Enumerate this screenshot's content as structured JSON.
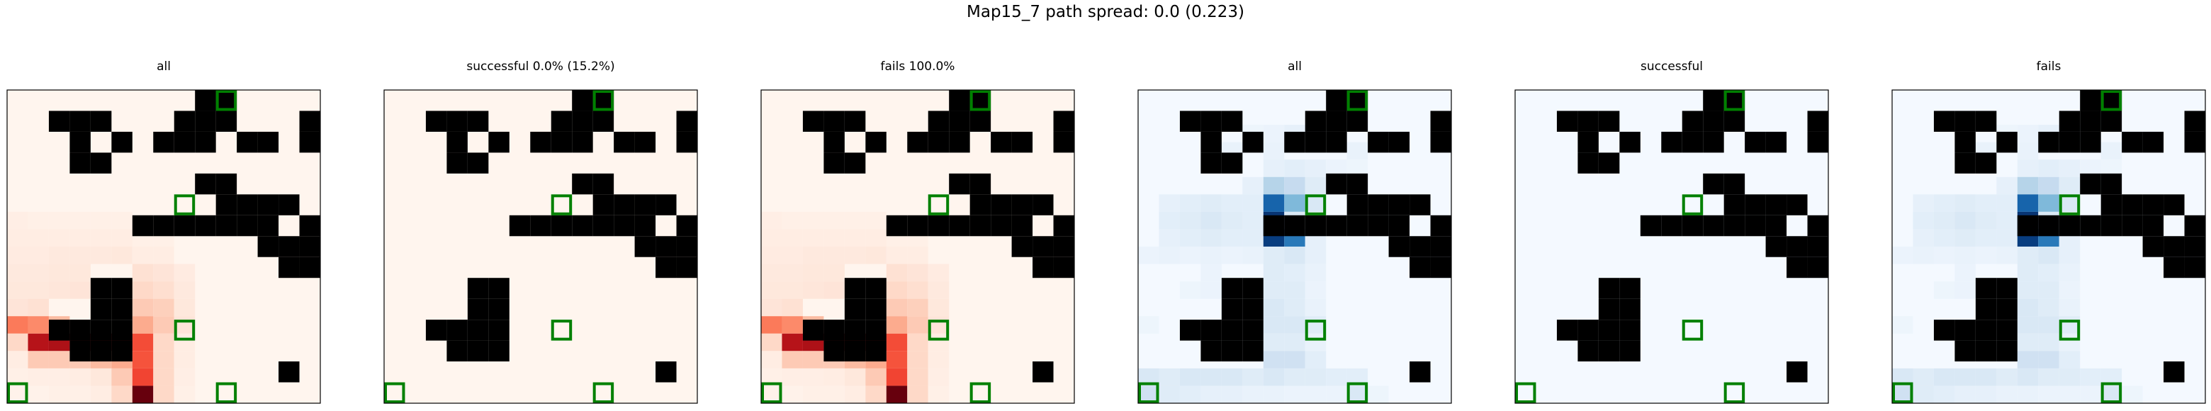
{
  "figure": {
    "suptitle": "Map15_7 path spread: 0.0 (0.223)"
  },
  "grid": {
    "rows": 15,
    "cols": 15,
    "walls": [
      [
        1,
        9
      ],
      [
        1,
        10
      ],
      [
        2,
        2
      ],
      [
        2,
        3
      ],
      [
        2,
        4
      ],
      [
        2,
        8
      ],
      [
        2,
        9
      ],
      [
        2,
        10
      ],
      [
        2,
        14
      ],
      [
        3,
        3
      ],
      [
        3,
        5
      ],
      [
        3,
        7
      ],
      [
        3,
        8
      ],
      [
        3,
        9
      ],
      [
        3,
        11
      ],
      [
        3,
        12
      ],
      [
        3,
        14
      ],
      [
        4,
        3
      ],
      [
        4,
        4
      ],
      [
        5,
        9
      ],
      [
        5,
        10
      ],
      [
        6,
        10
      ],
      [
        6,
        11
      ],
      [
        6,
        12
      ],
      [
        6,
        13
      ],
      [
        7,
        6
      ],
      [
        7,
        7
      ],
      [
        7,
        8
      ],
      [
        7,
        9
      ],
      [
        7,
        10
      ],
      [
        7,
        11
      ],
      [
        7,
        12
      ],
      [
        7,
        14
      ],
      [
        8,
        12
      ],
      [
        8,
        13
      ],
      [
        8,
        14
      ],
      [
        9,
        13
      ],
      [
        9,
        14
      ],
      [
        10,
        4
      ],
      [
        10,
        5
      ],
      [
        11,
        4
      ],
      [
        11,
        5
      ],
      [
        12,
        2
      ],
      [
        12,
        3
      ],
      [
        12,
        4
      ],
      [
        12,
        5
      ],
      [
        13,
        3
      ],
      [
        13,
        4
      ],
      [
        13,
        5
      ],
      [
        14,
        13
      ]
    ],
    "markers": [
      [
        1,
        10
      ],
      [
        6,
        8
      ],
      [
        12,
        8
      ],
      [
        15,
        0
      ],
      [
        15,
        10
      ]
    ],
    "marker_color": "#008000"
  },
  "chart_data": [
    {
      "type": "heatmap",
      "title": "all",
      "colormap": "Reds",
      "vmax": 1.0,
      "cells": [
        [
          7,
          0,
          0.04
        ],
        [
          7,
          1,
          0.03
        ],
        [
          7,
          2,
          0.03
        ],
        [
          7,
          3,
          0.03
        ],
        [
          7,
          4,
          0.03
        ],
        [
          7,
          5,
          0.03
        ],
        [
          8,
          0,
          0.05
        ],
        [
          8,
          1,
          0.05
        ],
        [
          8,
          2,
          0.05
        ],
        [
          8,
          3,
          0.05
        ],
        [
          8,
          4,
          0.05
        ],
        [
          8,
          5,
          0.05
        ],
        [
          8,
          6,
          0.03
        ],
        [
          8,
          7,
          0.03
        ],
        [
          9,
          0,
          0.06
        ],
        [
          9,
          1,
          0.06
        ],
        [
          9,
          2,
          0.07
        ],
        [
          9,
          3,
          0.07
        ],
        [
          9,
          4,
          0.07
        ],
        [
          9,
          5,
          0.08
        ],
        [
          9,
          6,
          0.05
        ],
        [
          9,
          7,
          0.05
        ],
        [
          10,
          0,
          0.07
        ],
        [
          10,
          1,
          0.07
        ],
        [
          10,
          2,
          0.08
        ],
        [
          10,
          3,
          0.08
        ],
        [
          10,
          6,
          0.12
        ],
        [
          10,
          7,
          0.1
        ],
        [
          10,
          8,
          0.06
        ],
        [
          11,
          0,
          0.08
        ],
        [
          11,
          1,
          0.08
        ],
        [
          11,
          2,
          0.09
        ],
        [
          11,
          3,
          0.1
        ],
        [
          11,
          6,
          0.15
        ],
        [
          11,
          7,
          0.13
        ],
        [
          11,
          8,
          0.07
        ],
        [
          12,
          0,
          0.1
        ],
        [
          12,
          1,
          0.12
        ],
        [
          12,
          6,
          0.2
        ],
        [
          12,
          7,
          0.18
        ],
        [
          12,
          8,
          0.08
        ],
        [
          13,
          0,
          0.45
        ],
        [
          13,
          1,
          0.4
        ],
        [
          13,
          2,
          0.25
        ],
        [
          13,
          6,
          0.3
        ],
        [
          13,
          7,
          0.2
        ],
        [
          13,
          8,
          0.1
        ],
        [
          14,
          0,
          0.15
        ],
        [
          14,
          1,
          0.82
        ],
        [
          14,
          2,
          0.85
        ],
        [
          14,
          3,
          0.88
        ],
        [
          14,
          4,
          0.86
        ],
        [
          14,
          5,
          0.84
        ],
        [
          14,
          6,
          0.58
        ],
        [
          14,
          7,
          0.15
        ],
        [
          14,
          8,
          0.05
        ],
        [
          15,
          0,
          0.05
        ],
        [
          15,
          1,
          0.2
        ],
        [
          15,
          2,
          0.2
        ],
        [
          15,
          3,
          0.2
        ],
        [
          15,
          4,
          0.25
        ],
        [
          15,
          5,
          0.3
        ],
        [
          15,
          6,
          0.56
        ],
        [
          15,
          7,
          0.15
        ],
        [
          15,
          8,
          0.05
        ],
        [
          16,
          0,
          0.03
        ],
        [
          16,
          1,
          0.04
        ],
        [
          16,
          2,
          0.04
        ],
        [
          16,
          3,
          0.05
        ],
        [
          16,
          4,
          0.08
        ],
        [
          16,
          5,
          0.2
        ],
        [
          16,
          6,
          0.6
        ],
        [
          16,
          7,
          0.15
        ],
        [
          16,
          8,
          0.04
        ],
        [
          17,
          0,
          0.02
        ],
        [
          17,
          1,
          0.02
        ],
        [
          17,
          2,
          0.03
        ],
        [
          17,
          3,
          0.03
        ],
        [
          17,
          4,
          0.05
        ],
        [
          17,
          5,
          0.15
        ],
        [
          17,
          6,
          1.0
        ],
        [
          17,
          7,
          0.15
        ],
        [
          17,
          8,
          0.03
        ]
      ]
    },
    {
      "type": "heatmap",
      "title": "successful 0.0% (15.2%)",
      "colormap": "Reds",
      "vmax": 1.0,
      "cells": []
    },
    {
      "type": "heatmap",
      "title": "fails 100.0%",
      "colormap": "Reds",
      "vmax": 1.0,
      "cells": "same_as_all"
    },
    {
      "type": "heatmap",
      "title": "all",
      "colormap": "Blues",
      "vmax": 1.0,
      "cells": [
        [
          2,
          5,
          0.04
        ],
        [
          2,
          6,
          0.05
        ],
        [
          2,
          7,
          0.08
        ],
        [
          2,
          8,
          0.08
        ],
        [
          3,
          4,
          0.06
        ],
        [
          3,
          6,
          0.06
        ],
        [
          3,
          10,
          0.06
        ],
        [
          4,
          6,
          0.08
        ],
        [
          4,
          7,
          0.1
        ],
        [
          4,
          8,
          0.08
        ],
        [
          4,
          9,
          0.05
        ],
        [
          4,
          10,
          0.04
        ],
        [
          5,
          5,
          0.08
        ],
        [
          5,
          6,
          0.3
        ],
        [
          5,
          7,
          0.25
        ],
        [
          5,
          8,
          0.12
        ],
        [
          6,
          1,
          0.08
        ],
        [
          6,
          2,
          0.1
        ],
        [
          6,
          3,
          0.12
        ],
        [
          6,
          4,
          0.1
        ],
        [
          6,
          5,
          0.1
        ],
        [
          6,
          6,
          0.8
        ],
        [
          6,
          7,
          0.45
        ],
        [
          6,
          8,
          0.15
        ],
        [
          7,
          1,
          0.1
        ],
        [
          7,
          2,
          0.12
        ],
        [
          7,
          3,
          0.15
        ],
        [
          7,
          4,
          0.12
        ],
        [
          7,
          5,
          0.1
        ],
        [
          7,
          6,
          0.98
        ],
        [
          7,
          7,
          0.15
        ],
        [
          8,
          1,
          0.08
        ],
        [
          8,
          2,
          0.1
        ],
        [
          8,
          3,
          0.12
        ],
        [
          8,
          4,
          0.1
        ],
        [
          8,
          5,
          0.1
        ],
        [
          8,
          6,
          0.95
        ],
        [
          8,
          7,
          0.72
        ],
        [
          8,
          8,
          0.08
        ],
        [
          9,
          0,
          0.05
        ],
        [
          9,
          1,
          0.06
        ],
        [
          9,
          2,
          0.05
        ],
        [
          9,
          3,
          0.06
        ],
        [
          9,
          4,
          0.05
        ],
        [
          9,
          5,
          0.06
        ],
        [
          9,
          6,
          0.12
        ],
        [
          9,
          7,
          0.15
        ],
        [
          9,
          8,
          0.08
        ],
        [
          10,
          3,
          0.05
        ],
        [
          10,
          6,
          0.12
        ],
        [
          10,
          7,
          0.1
        ],
        [
          10,
          8,
          0.06
        ],
        [
          11,
          2,
          0.04
        ],
        [
          11,
          3,
          0.05
        ],
        [
          11,
          6,
          0.12
        ],
        [
          11,
          7,
          0.12
        ],
        [
          11,
          8,
          0.05
        ],
        [
          12,
          6,
          0.15
        ],
        [
          12,
          7,
          0.12
        ],
        [
          12,
          8,
          0.06
        ],
        [
          13,
          0,
          0.04
        ],
        [
          13,
          6,
          0.15
        ],
        [
          13,
          7,
          0.15
        ],
        [
          13,
          8,
          0.12
        ],
        [
          14,
          6,
          0.12
        ],
        [
          14,
          7,
          0.12
        ],
        [
          14,
          8,
          0.06
        ],
        [
          15,
          6,
          0.2
        ],
        [
          15,
          7,
          0.2
        ],
        [
          15,
          8,
          0.1
        ],
        [
          16,
          0,
          0.15
        ],
        [
          16,
          1,
          0.12
        ],
        [
          16,
          2,
          0.15
        ],
        [
          16,
          3,
          0.15
        ],
        [
          16,
          4,
          0.15
        ],
        [
          16,
          5,
          0.12
        ],
        [
          16,
          6,
          0.15
        ],
        [
          16,
          7,
          0.12
        ],
        [
          16,
          8,
          0.12
        ],
        [
          16,
          9,
          0.1
        ],
        [
          16,
          10,
          0.1
        ],
        [
          17,
          0,
          0.2
        ],
        [
          17,
          1,
          0.12
        ],
        [
          17,
          2,
          0.1
        ],
        [
          17,
          3,
          0.08
        ],
        [
          17,
          4,
          0.08
        ],
        [
          17,
          5,
          0.06
        ],
        [
          17,
          6,
          0.06
        ],
        [
          17,
          7,
          0.05
        ],
        [
          17,
          8,
          0.05
        ],
        [
          17,
          9,
          0.05
        ],
        [
          17,
          10,
          0.15
        ],
        [
          17,
          11,
          0.04
        ]
      ]
    },
    {
      "type": "heatmap",
      "title": "successful",
      "colormap": "Blues",
      "vmax": 1.0,
      "cells": []
    },
    {
      "type": "heatmap",
      "title": "fails",
      "colormap": "Blues",
      "vmax": 1.0,
      "cells": "same_as_blue_all"
    }
  ]
}
